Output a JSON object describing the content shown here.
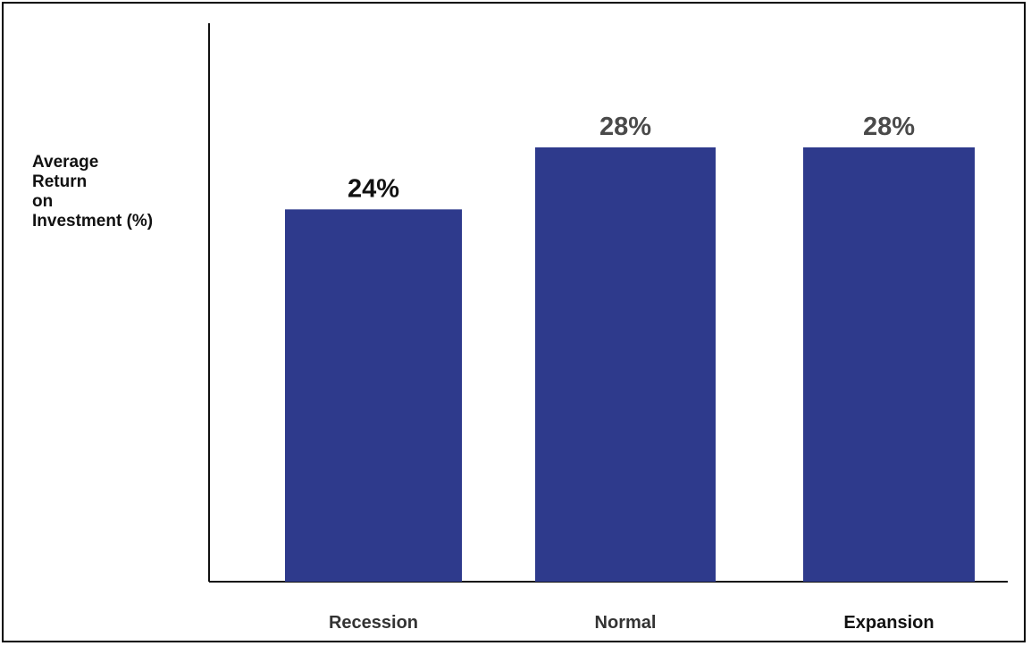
{
  "chart_data": {
    "type": "bar",
    "title": "",
    "xlabel": "",
    "ylabel_lines": [
      "Average",
      "Return",
      "on",
      "Investment (%)"
    ],
    "categories": [
      "Recession",
      "Normal",
      "Expansion"
    ],
    "values": [
      24,
      28,
      28
    ],
    "data_labels": [
      "24%",
      "28%",
      "28%"
    ],
    "ylim": [
      0,
      36
    ],
    "grid": false,
    "legend": "none",
    "colors": {
      "bar": "#2e3a8c",
      "axis": "#111111",
      "data_label_first": "#111111",
      "data_label_other": "#4a4a4a",
      "category_label": "#333333",
      "category_label_last": "#111111"
    }
  }
}
